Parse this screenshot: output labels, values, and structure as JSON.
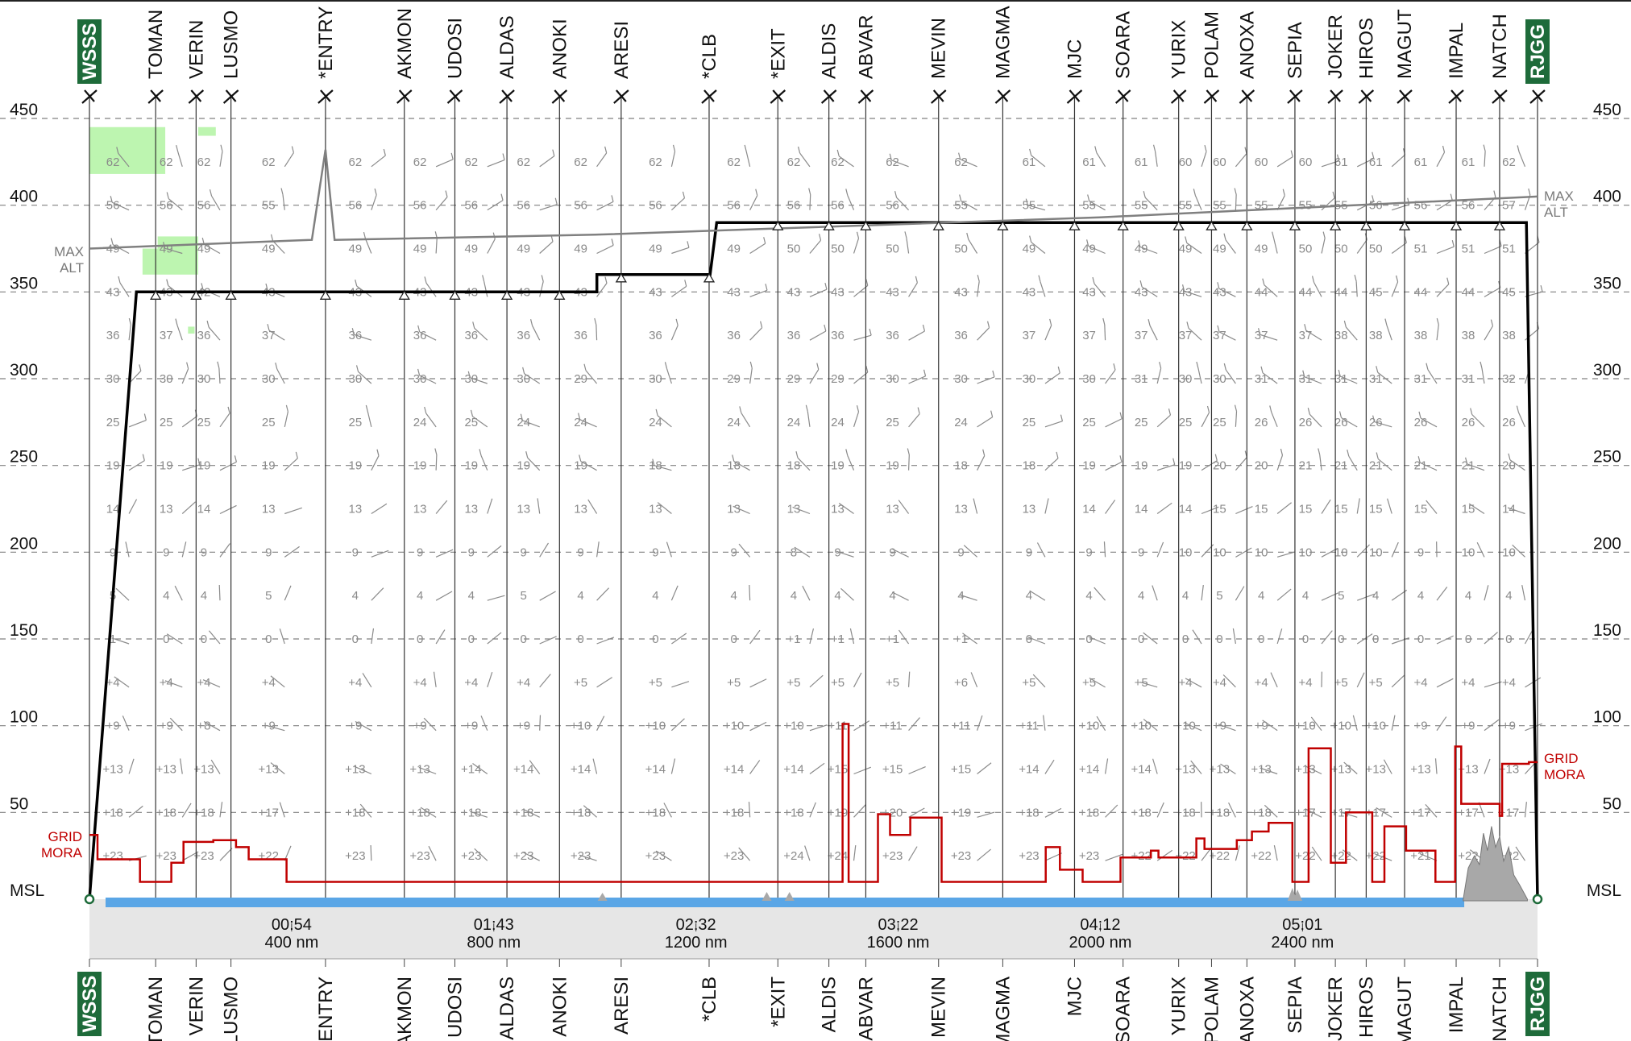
{
  "chart_data": {
    "type": "line",
    "title": "",
    "xlabel": "",
    "ylabel": "",
    "ylim": [
      0,
      450
    ],
    "xlim_nm": [
      0,
      2865
    ],
    "grid": true,
    "levels": [
      {
        "label": "MSL",
        "value": 0
      },
      {
        "label": "50",
        "value": 50
      },
      {
        "label": "100",
        "value": 100
      },
      {
        "label": "150",
        "value": 150
      },
      {
        "label": "200",
        "value": 200
      },
      {
        "label": "250",
        "value": 250
      },
      {
        "label": "300",
        "value": 300
      },
      {
        "label": "350",
        "value": 350
      },
      {
        "label": "400",
        "value": 400
      },
      {
        "label": "450",
        "value": 450
      }
    ],
    "time_ticks": [
      {
        "time": "00:54",
        "dist": "400 nm",
        "nm": 400
      },
      {
        "time": "01:43",
        "dist": "800 nm",
        "nm": 800
      },
      {
        "time": "02:32",
        "dist": "1200 nm",
        "nm": 1200
      },
      {
        "time": "03:22",
        "dist": "1600 nm",
        "nm": 1600
      },
      {
        "time": "04:12",
        "dist": "2000 nm",
        "nm": 2000
      },
      {
        "time": "05:01",
        "dist": "2400 nm",
        "nm": 2400
      }
    ],
    "waypoints": [
      {
        "name": "WSSS",
        "nm": 0,
        "airport": true
      },
      {
        "name": "TOMAN",
        "nm": 131
      },
      {
        "name": "VERIN",
        "nm": 211
      },
      {
        "name": "LUSMO",
        "nm": 280
      },
      {
        "name": "*ENTRY",
        "nm": 467
      },
      {
        "name": "AKMON",
        "nm": 623
      },
      {
        "name": "UDOSI",
        "nm": 723
      },
      {
        "name": "ALDAS",
        "nm": 826
      },
      {
        "name": "ANOKI",
        "nm": 930
      },
      {
        "name": "ARESI",
        "nm": 1052
      },
      {
        "name": "*CLB",
        "nm": 1226
      },
      {
        "name": "*EXIT",
        "nm": 1362
      },
      {
        "name": "ALDIS",
        "nm": 1463
      },
      {
        "name": "ABVAR",
        "nm": 1536
      },
      {
        "name": "MEVIN",
        "nm": 1680
      },
      {
        "name": "MAGMA",
        "nm": 1807
      },
      {
        "name": "MJC",
        "nm": 1949
      },
      {
        "name": "SOARA",
        "nm": 2045
      },
      {
        "name": "YURIX",
        "nm": 2155
      },
      {
        "name": "POLAM",
        "nm": 2220
      },
      {
        "name": "ANOXA",
        "nm": 2290
      },
      {
        "name": "SEPIA",
        "nm": 2385
      },
      {
        "name": "JOKER",
        "nm": 2465
      },
      {
        "name": "HIROS",
        "nm": 2526
      },
      {
        "name": "MAGUT",
        "nm": 2602
      },
      {
        "name": "IMPAL",
        "nm": 2704
      },
      {
        "name": "NATCH",
        "nm": 2790
      },
      {
        "name": "RJGG",
        "nm": 2865,
        "airport": true
      }
    ],
    "series": [
      {
        "name": "",
        "kind": "flight-profile",
        "points": [
          [
            0,
            0
          ],
          [
            93,
            350
          ],
          [
            1004,
            350
          ],
          [
            1004,
            360
          ],
          [
            1228,
            360
          ],
          [
            1241,
            390
          ],
          [
            2843,
            390
          ],
          [
            2865,
            0
          ]
        ]
      },
      {
        "name": "MAX ALT",
        "kind": "max-altitude",
        "points": [
          [
            0,
            375
          ],
          [
            440,
            380
          ],
          [
            467,
            432
          ],
          [
            485,
            380
          ],
          [
            1000,
            383
          ],
          [
            2000,
            393
          ],
          [
            2865,
            405
          ]
        ]
      },
      {
        "name": "GRID MORA",
        "kind": "grid-mora",
        "points": [
          [
            0,
            37
          ],
          [
            16,
            37
          ],
          [
            16,
            23
          ],
          [
            100,
            23
          ],
          [
            100,
            10
          ],
          [
            162,
            10
          ],
          [
            162,
            21
          ],
          [
            186,
            21
          ],
          [
            186,
            33
          ],
          [
            245,
            33
          ],
          [
            245,
            34
          ],
          [
            290,
            34
          ],
          [
            290,
            30
          ],
          [
            315,
            30
          ],
          [
            315,
            23
          ],
          [
            390,
            23
          ],
          [
            390,
            10
          ],
          [
            1490,
            10
          ],
          [
            1490,
            101
          ],
          [
            1502,
            101
          ],
          [
            1502,
            10
          ],
          [
            1560,
            10
          ],
          [
            1560,
            49
          ],
          [
            1584,
            49
          ],
          [
            1584,
            37
          ],
          [
            1624,
            37
          ],
          [
            1624,
            47
          ],
          [
            1686,
            47
          ],
          [
            1686,
            10
          ],
          [
            1892,
            10
          ],
          [
            1892,
            30
          ],
          [
            1920,
            30
          ],
          [
            1920,
            17
          ],
          [
            1965,
            17
          ],
          [
            1965,
            10
          ],
          [
            2040,
            10
          ],
          [
            2040,
            24
          ],
          [
            2100,
            24
          ],
          [
            2100,
            28
          ],
          [
            2115,
            28
          ],
          [
            2115,
            24
          ],
          [
            2190,
            24
          ],
          [
            2190,
            35
          ],
          [
            2206,
            35
          ],
          [
            2206,
            29
          ],
          [
            2270,
            29
          ],
          [
            2270,
            34
          ],
          [
            2300,
            34
          ],
          [
            2300,
            39
          ],
          [
            2333,
            39
          ],
          [
            2333,
            44
          ],
          [
            2380,
            44
          ],
          [
            2380,
            10
          ],
          [
            2412,
            10
          ],
          [
            2412,
            87
          ],
          [
            2456,
            87
          ],
          [
            2456,
            21
          ],
          [
            2486,
            21
          ],
          [
            2486,
            50
          ],
          [
            2538,
            50
          ],
          [
            2538,
            10
          ],
          [
            2562,
            10
          ],
          [
            2562,
            42
          ],
          [
            2605,
            42
          ],
          [
            2605,
            28
          ],
          [
            2663,
            28
          ],
          [
            2663,
            10
          ],
          [
            2702,
            10
          ],
          [
            2702,
            88
          ],
          [
            2714,
            88
          ],
          [
            2714,
            55
          ],
          [
            2790,
            55
          ],
          [
            2790,
            48
          ],
          [
            2795,
            48
          ],
          [
            2795,
            78
          ],
          [
            2848,
            78
          ],
          [
            2848,
            79
          ],
          [
            2865,
            79
          ]
        ]
      }
    ],
    "wind_grid": {
      "columns": [
        0,
        131,
        211,
        280,
        467,
        623,
        723,
        826,
        930,
        1052,
        1226,
        1362,
        1463,
        1536,
        1680,
        1807,
        1949,
        2045,
        2155,
        2220,
        2290,
        2385,
        2465,
        2526,
        2602,
        2704,
        2790
      ],
      "rows": [
        {
          "level": 25,
          "temps": [
            "+23",
            "+23",
            "+23",
            "+22",
            "+23",
            "+23",
            "+23",
            "+23",
            "+23",
            "+23",
            "+23",
            "+24",
            "+24",
            "+23",
            "+23",
            "+23",
            "+23",
            "+22",
            "+22",
            "+22",
            "+22",
            "+22",
            "+22",
            "+22",
            "+21",
            "+22",
            "+22"
          ]
        },
        {
          "level": 50,
          "temps": [
            "+18",
            "+18",
            "+18",
            "+17",
            "+18",
            "+18",
            "+18",
            "+18",
            "+18",
            "+18",
            "+18",
            "+18",
            "+19",
            "+20",
            "+19",
            "+18",
            "+18",
            "+18",
            "+18",
            "+18",
            "+18",
            "+17",
            "+17",
            "+17",
            "+17",
            "+17",
            "+17"
          ]
        },
        {
          "level": 75,
          "temps": [
            "+13",
            "+13",
            "+13",
            "+13",
            "+13",
            "+13",
            "+14",
            "+14",
            "+14",
            "+14",
            "+14",
            "+14",
            "+15",
            "+15",
            "+15",
            "+14",
            "+14",
            "+14",
            "+13",
            "+13",
            "+13",
            "+13",
            "+13",
            "+13",
            "+13",
            "+13",
            "+13"
          ]
        },
        {
          "level": 100,
          "temps": [
            "+9",
            "+9",
            "+8",
            "+9",
            "+9",
            "+9",
            "+9",
            "+9",
            "+10",
            "+10",
            "+10",
            "+10",
            "+11",
            "+11",
            "+11",
            "+11",
            "+10",
            "+10",
            "+10",
            "+9",
            "+9",
            "+10",
            "+10",
            "+10",
            "+9",
            "+9",
            "+9"
          ]
        },
        {
          "level": 125,
          "temps": [
            "+4",
            "+4",
            "+4",
            "+4",
            "+4",
            "+4",
            "+4",
            "+4",
            "+5",
            "+5",
            "+5",
            "+5",
            "+5",
            "+5",
            "+6",
            "+5",
            "+5",
            "+5",
            "+4",
            "+4",
            "+4",
            "+4",
            "+5",
            "+5",
            "+4",
            "+4",
            "+4"
          ]
        },
        {
          "level": 150,
          "temps": [
            "1",
            "0",
            "0",
            "0",
            "0",
            "0",
            "0",
            "0",
            "0",
            "0",
            "0",
            "+1",
            "+1",
            "+1",
            "+1",
            "0",
            "0",
            "0",
            "0",
            "0",
            "0",
            "0",
            "0",
            "0",
            "0",
            "0",
            "0"
          ]
        },
        {
          "level": 175,
          "temps": [
            "5",
            "4",
            "4",
            "5",
            "4",
            "4",
            "4",
            "5",
            "4",
            "4",
            "4",
            "4",
            "4",
            "4",
            "4",
            "4",
            "4",
            "4",
            "4",
            "5",
            "4",
            "4",
            "5",
            "4",
            "4",
            "4",
            "4"
          ]
        },
        {
          "level": 200,
          "temps": [
            "9",
            "9",
            "9",
            "9",
            "9",
            "9",
            "9",
            "9",
            "9",
            "9",
            "9",
            "8",
            "9",
            "9",
            "9",
            "9",
            "9",
            "9",
            "10",
            "10",
            "10",
            "10",
            "10",
            "10",
            "9",
            "10",
            "10"
          ]
        },
        {
          "level": 225,
          "temps": [
            "14",
            "13",
            "14",
            "13",
            "13",
            "13",
            "13",
            "13",
            "13",
            "13",
            "13",
            "13",
            "13",
            "13",
            "13",
            "13",
            "14",
            "14",
            "14",
            "15",
            "15",
            "15",
            "15",
            "15",
            "15",
            "15",
            "14"
          ]
        },
        {
          "level": 250,
          "temps": [
            "19",
            "19",
            "19",
            "19",
            "19",
            "19",
            "19",
            "19",
            "19",
            "18",
            "18",
            "18",
            "19",
            "19",
            "18",
            "18",
            "19",
            "19",
            "19",
            "20",
            "20",
            "21",
            "21",
            "21",
            "21",
            "21",
            "20"
          ]
        },
        {
          "level": 275,
          "temps": [
            "25",
            "25",
            "25",
            "25",
            "25",
            "24",
            "25",
            "24",
            "24",
            "24",
            "24",
            "24",
            "24",
            "25",
            "24",
            "25",
            "25",
            "25",
            "25",
            "25",
            "26",
            "26",
            "26",
            "26",
            "26",
            "26",
            "26"
          ]
        },
        {
          "level": 300,
          "temps": [
            "30",
            "30",
            "30",
            "30",
            "30",
            "30",
            "30",
            "30",
            "29",
            "30",
            "29",
            "29",
            "29",
            "30",
            "30",
            "30",
            "30",
            "31",
            "30",
            "30",
            "31",
            "31",
            "31",
            "31",
            "31",
            "31",
            "32"
          ]
        },
        {
          "level": 325,
          "temps": [
            "36",
            "37",
            "36",
            "37",
            "36",
            "36",
            "36",
            "36",
            "36",
            "36",
            "36",
            "36",
            "36",
            "36",
            "36",
            "37",
            "37",
            "37",
            "37",
            "37",
            "37",
            "37",
            "38",
            "38",
            "38",
            "38",
            "38"
          ]
        },
        {
          "level": 350,
          "temps": [
            "43",
            "43",
            "42",
            "43",
            "43",
            "43",
            "43",
            "43",
            "43",
            "43",
            "43",
            "43",
            "43",
            "43",
            "43",
            "43",
            "43",
            "43",
            "43",
            "43",
            "44",
            "44",
            "44",
            "45",
            "44",
            "44",
            "45"
          ]
        },
        {
          "level": 375,
          "temps": [
            "49",
            "49",
            "49",
            "49",
            "49",
            "49",
            "49",
            "49",
            "49",
            "49",
            "49",
            "50",
            "50",
            "50",
            "50",
            "49",
            "49",
            "49",
            "49",
            "49",
            "49",
            "50",
            "50",
            "50",
            "51",
            "51",
            "51"
          ]
        },
        {
          "level": 400,
          "temps": [
            "56",
            "56",
            "56",
            "55",
            "56",
            "56",
            "56",
            "56",
            "56",
            "56",
            "56",
            "56",
            "56",
            "56",
            "55",
            "55",
            "55",
            "55",
            "55",
            "55",
            "55",
            "55",
            "55",
            "56",
            "56",
            "56",
            "57"
          ]
        },
        {
          "level": 425,
          "temps": [
            "62",
            "62",
            "62",
            "62",
            "62",
            "62",
            "62",
            "62",
            "62",
            "62",
            "62",
            "62",
            "62",
            "62",
            "62",
            "61",
            "61",
            "61",
            "60",
            "60",
            "60",
            "60",
            "61",
            "61",
            "61",
            "61",
            "62"
          ]
        }
      ]
    },
    "annotations": {
      "max_alt_label_left": [
        "MAX",
        "ALT"
      ],
      "max_alt_label_right": [
        "MAX",
        "ALT"
      ],
      "mora_label_left": [
        "GRID",
        "MORA"
      ],
      "mora_label_right": [
        "GRID",
        "MORA"
      ]
    },
    "colors": {
      "profile": "#000000",
      "max_alt": "#808080",
      "mora": "#c00000",
      "airport_box": "#1e6b3a",
      "water": "#5aa6e6",
      "terrain": "#a8a8a8",
      "ground_band": "#e6e6e6",
      "weather_patches": "#bdf5b0",
      "grid_line": "#808080"
    }
  }
}
